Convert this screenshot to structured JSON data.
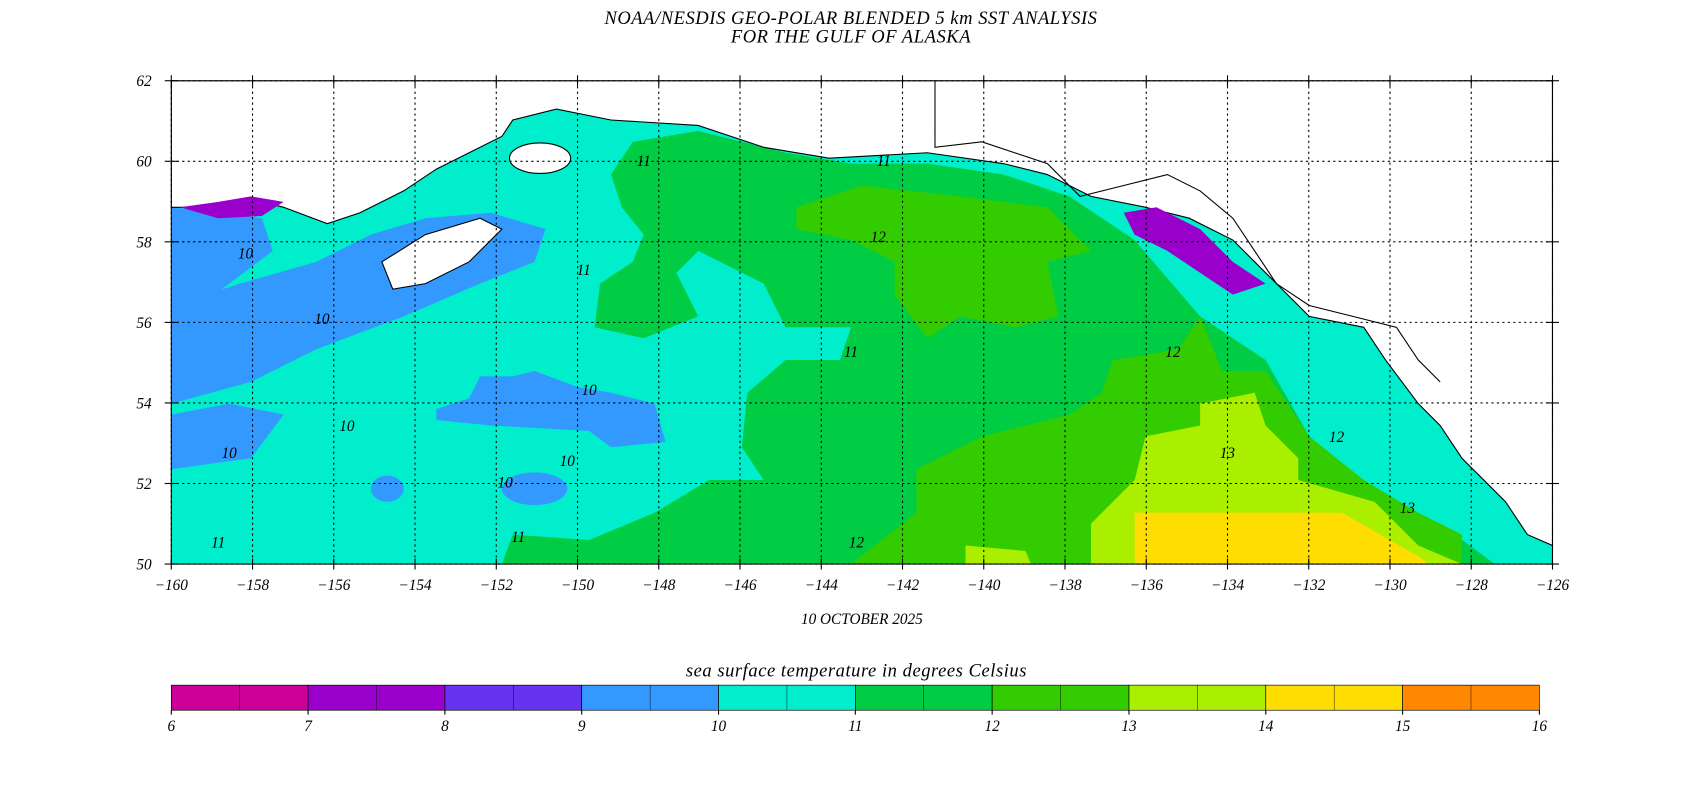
{
  "header": {
    "title_line1": "NOAA/NESDIS GEO-POLAR BLENDED 5 km SST ANALYSIS",
    "title_line2": "FOR THE GULF OF ALASKA"
  },
  "map": {
    "xlim": [
      -160,
      -126
    ],
    "ylim": [
      50,
      62
    ],
    "xticks": [
      {
        "value": -160,
        "label": "−160"
      },
      {
        "value": -158,
        "label": "−158"
      },
      {
        "value": -156,
        "label": "−156"
      },
      {
        "value": -154,
        "label": "−154"
      },
      {
        "value": -152,
        "label": "−152"
      },
      {
        "value": -150,
        "label": "−150"
      },
      {
        "value": -148,
        "label": "−148"
      },
      {
        "value": -146,
        "label": "−146"
      },
      {
        "value": -144,
        "label": "−144"
      },
      {
        "value": -142,
        "label": "−142"
      },
      {
        "value": -140,
        "label": "−140"
      },
      {
        "value": -138,
        "label": "−138"
      },
      {
        "value": -136,
        "label": "−136"
      },
      {
        "value": -134,
        "label": "−134"
      },
      {
        "value": -132,
        "label": "−132"
      },
      {
        "value": -130,
        "label": "−130"
      },
      {
        "value": -128,
        "label": "−128"
      },
      {
        "value": -126,
        "label": "−126"
      }
    ],
    "yticks": [
      50,
      52,
      54,
      56,
      58,
      60,
      62
    ],
    "date": "10 OCTOBER 2025",
    "contour_labels": [
      "10",
      "10",
      "10",
      "10",
      "10",
      "10",
      "10",
      "11",
      "11",
      "11",
      "11",
      "11",
      "11",
      "12",
      "12",
      "12",
      "12",
      "13",
      "13"
    ]
  },
  "colorbar": {
    "label": "sea surface temperature in degrees Celsius",
    "ticks": [
      6,
      7,
      8,
      9,
      10,
      11,
      12,
      13,
      14,
      15,
      16
    ],
    "colors": [
      "#cc0099",
      "#9900cc",
      "#6633ee",
      "#3399ff",
      "#00eecc",
      "#00cc44",
      "#33cc00",
      "#aaee00",
      "#ffdd00",
      "#ff8800"
    ]
  }
}
